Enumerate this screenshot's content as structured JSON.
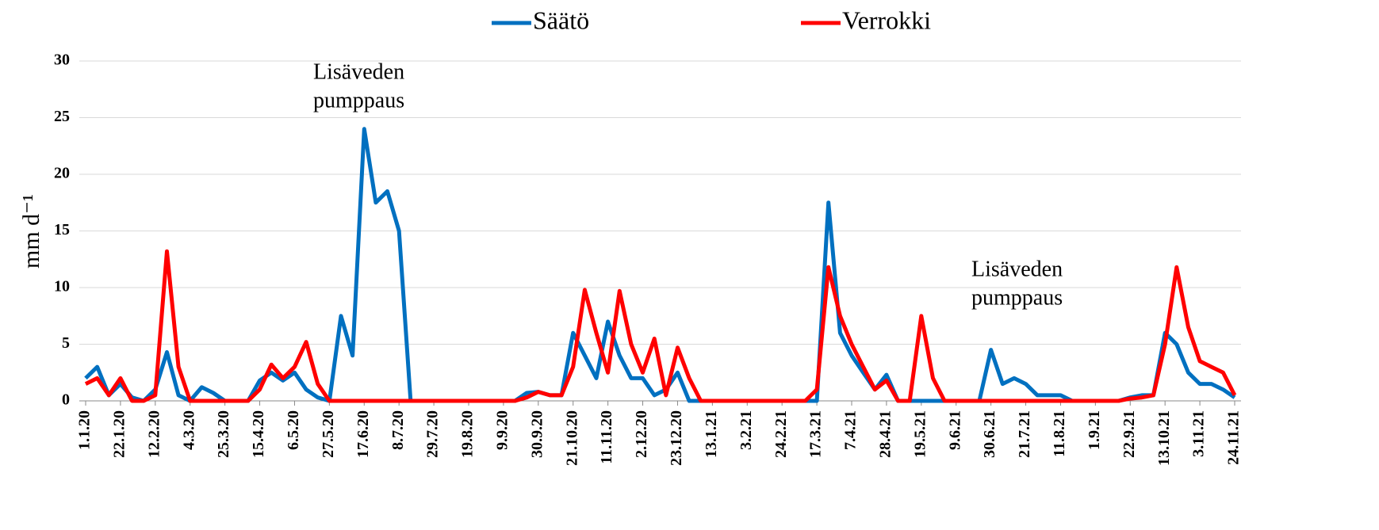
{
  "chart_data": {
    "type": "line",
    "ylabel": "mm d⁻¹",
    "annotations": [
      [
        "Lisäveden",
        "pumppaus"
      ],
      [
        "Lisäveden",
        "pumppaus"
      ]
    ],
    "legend": "top",
    "grid": true,
    "ylim": [
      0,
      30
    ],
    "yticks": [
      0,
      5,
      10,
      15,
      20,
      25,
      30
    ],
    "categories": [
      "1.1.20",
      null,
      null,
      "22.1.20",
      null,
      null,
      "12.2.20",
      null,
      null,
      "4.3.20",
      null,
      null,
      "25.3.20",
      null,
      null,
      "15.4.20",
      null,
      null,
      "6.5.20",
      null,
      null,
      "27.5.20",
      null,
      null,
      "17.6.20",
      null,
      null,
      "8.7.20",
      null,
      null,
      "29.7.20",
      null,
      null,
      "19.8.20",
      null,
      null,
      "9.9.20",
      null,
      null,
      "30.9.20",
      null,
      null,
      "21.10.20",
      null,
      null,
      "11.11.20",
      null,
      null,
      "2.12.20",
      null,
      null,
      "23.12.20",
      null,
      null,
      "13.1.21",
      null,
      null,
      "3.2.21",
      null,
      null,
      "24.2.21",
      null,
      null,
      "17.3.21",
      null,
      null,
      "7.4.21",
      null,
      null,
      "28.4.21",
      null,
      null,
      "19.5.21",
      null,
      null,
      "9.6.21",
      null,
      null,
      "30.6.21",
      null,
      null,
      "21.7.21",
      null,
      null,
      "11.8.21",
      null,
      null,
      "1.9.21",
      null,
      null,
      "22.9.21",
      null,
      null,
      "13.10.21",
      null,
      null,
      "3.11.21",
      null,
      null,
      "24.11.21"
    ],
    "series": [
      {
        "name": "Säätö",
        "color": "#0070c0",
        "values": [
          2,
          3,
          0.5,
          1.5,
          0.3,
          0,
          1,
          4.3,
          0.5,
          0,
          1.2,
          0.7,
          0,
          0,
          0,
          1.8,
          2.5,
          1.8,
          2.5,
          1,
          0.3,
          0,
          7.5,
          4,
          24,
          17.5,
          18.5,
          15,
          0,
          0,
          0,
          0,
          0,
          0,
          0,
          0,
          0,
          0,
          0.7,
          0.8,
          0.5,
          0.5,
          6,
          4,
          2,
          7,
          4,
          2,
          2,
          0.5,
          1,
          2.5,
          0,
          0,
          0,
          0,
          0,
          0,
          0,
          0,
          0,
          0,
          0,
          0,
          17.5,
          6,
          4,
          2.5,
          1,
          2.3,
          0,
          0,
          0,
          0,
          0,
          0,
          0,
          0,
          4.5,
          1.5,
          2,
          1.5,
          0.5,
          0.5,
          0.5,
          0,
          0,
          0,
          0,
          0,
          0.3,
          0.5,
          0.5,
          6,
          5,
          2.5,
          1.5,
          1.5,
          1,
          0.3
        ]
      },
      {
        "name": "Verrokki",
        "color": "#ff0000",
        "values": [
          1.5,
          2,
          0.5,
          2,
          0,
          0,
          0.5,
          13.2,
          3,
          0,
          0,
          0,
          0,
          0,
          0,
          1,
          3.2,
          2,
          3,
          5.2,
          1.5,
          0,
          0,
          0,
          0,
          0,
          0,
          0,
          0,
          0,
          0,
          0,
          0,
          0,
          0,
          0,
          0,
          0,
          0.3,
          0.8,
          0.5,
          0.5,
          3,
          9.8,
          6,
          2.5,
          9.7,
          5,
          2.5,
          5.5,
          0.5,
          4.7,
          2,
          0,
          0,
          0,
          0,
          0,
          0,
          0,
          0,
          0,
          0,
          1,
          11.8,
          7.5,
          5,
          3,
          1,
          1.8,
          0,
          0,
          7.5,
          2,
          0,
          0,
          0,
          0,
          0,
          0,
          0,
          0,
          0,
          0,
          0,
          0,
          0,
          0,
          0,
          0,
          0.2,
          0.3,
          0.5,
          5,
          11.8,
          6.5,
          3.5,
          3,
          2.5,
          0.5
        ]
      }
    ]
  }
}
